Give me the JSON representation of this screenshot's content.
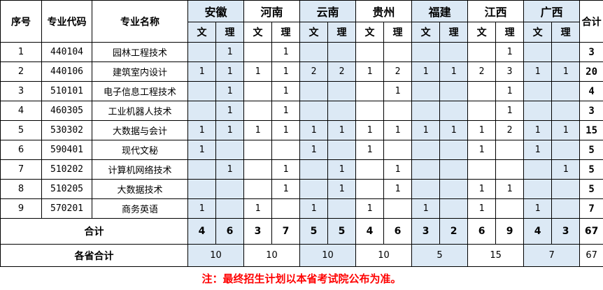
{
  "headers": {
    "index": "序号",
    "code": "专业代码",
    "name": "专业名称",
    "total": "合计",
    "arts": "文",
    "science": "理"
  },
  "provinces": [
    "安徽",
    "河南",
    "云南",
    "贵州",
    "福建",
    "江西",
    "广西"
  ],
  "rows": [
    {
      "index": "1",
      "code": "440104",
      "name": "园林工程技术",
      "values": [
        "",
        "1",
        "",
        "1",
        "",
        "",
        "",
        "",
        "",
        "",
        "",
        "1",
        "",
        ""
      ],
      "total": "3"
    },
    {
      "index": "2",
      "code": "440106",
      "name": "建筑室内设计",
      "values": [
        "1",
        "1",
        "1",
        "1",
        "2",
        "2",
        "1",
        "2",
        "1",
        "1",
        "2",
        "3",
        "1",
        "1"
      ],
      "total": "20"
    },
    {
      "index": "3",
      "code": "510101",
      "name": "电子信息工程技术",
      "values": [
        "",
        "1",
        "",
        "1",
        "",
        "",
        "",
        "1",
        "",
        "",
        "",
        "1",
        "",
        ""
      ],
      "total": "4"
    },
    {
      "index": "4",
      "code": "460305",
      "name": "工业机器人技术",
      "values": [
        "",
        "1",
        "",
        "1",
        "",
        "",
        "",
        "",
        "",
        "",
        "",
        "1",
        "",
        ""
      ],
      "total": "3"
    },
    {
      "index": "5",
      "code": "530302",
      "name": "大数据与会计",
      "values": [
        "1",
        "1",
        "1",
        "1",
        "1",
        "1",
        "1",
        "1",
        "1",
        "1",
        "1",
        "2",
        "1",
        "1"
      ],
      "total": "15"
    },
    {
      "index": "6",
      "code": "590401",
      "name": "现代文秘",
      "values": [
        "1",
        "",
        "",
        "",
        "1",
        "",
        "1",
        "",
        "",
        "",
        "1",
        "",
        "1",
        ""
      ],
      "total": "5"
    },
    {
      "index": "7",
      "code": "510202",
      "name": "计算机网络技术",
      "values": [
        "",
        "1",
        "",
        "1",
        "",
        "1",
        "",
        "1",
        "",
        "",
        "",
        "",
        "",
        "1"
      ],
      "total": "5"
    },
    {
      "index": "8",
      "code": "510205",
      "name": "大数据技术",
      "values": [
        "",
        "",
        "",
        "1",
        "",
        "1",
        "",
        "1",
        "",
        "",
        "1",
        "1",
        "",
        ""
      ],
      "total": "5"
    },
    {
      "index": "9",
      "code": "570201",
      "name": "商务英语",
      "values": [
        "1",
        "",
        "1",
        "",
        "1",
        "",
        "1",
        "",
        "1",
        "",
        "1",
        "",
        "1",
        ""
      ],
      "total": "7"
    }
  ],
  "totals": {
    "label": "合计",
    "values": [
      "4",
      "6",
      "3",
      "7",
      "5",
      "5",
      "4",
      "6",
      "3",
      "2",
      "6",
      "9",
      "4",
      "3"
    ],
    "total": "67"
  },
  "province_totals": {
    "label": "各省合计",
    "values": [
      "10",
      "10",
      "10",
      "10",
      "5",
      "15",
      "7"
    ],
    "total": "67"
  },
  "note": "注：最终招生计划以本省考试院公布为准。",
  "colors": {
    "shade": "#dce9f5",
    "note": "#ff0000"
  }
}
